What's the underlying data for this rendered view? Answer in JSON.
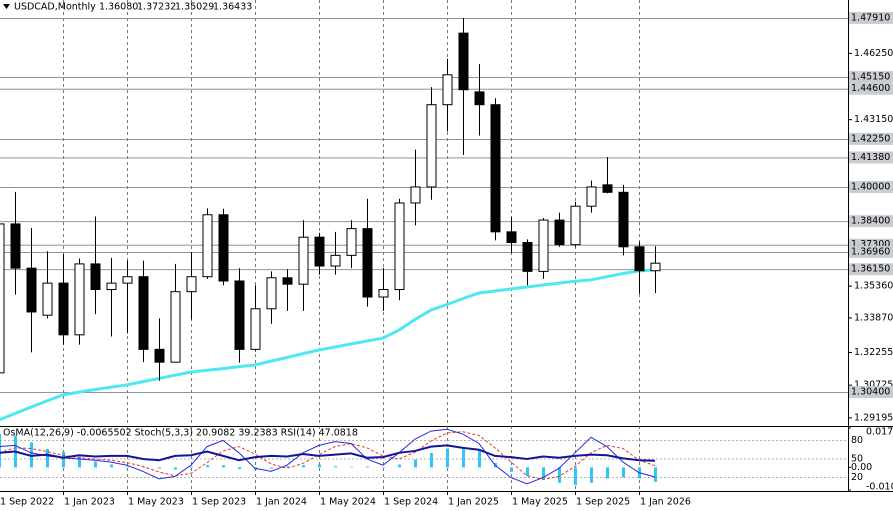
{
  "chart_data": {
    "type": "candlestick",
    "header": {
      "symbol": "USDCAD,Monthly",
      "ohlc": [
        "1.36080",
        "1.37232",
        "1.35029",
        "1.36433"
      ]
    },
    "categories": [
      "1 Sep 2022",
      null,
      null,
      null,
      "1 Jan 2023",
      null,
      null,
      null,
      "1 May 2023",
      null,
      null,
      null,
      "1 Sep 2023",
      null,
      null,
      null,
      "1 Jan 2024",
      null,
      null,
      null,
      "1 May 2024",
      null,
      null,
      null,
      "1 Sep 2024",
      null,
      null,
      null,
      "1 Jan 2025",
      null,
      null,
      null,
      "1 May 2025",
      null,
      null,
      null,
      "1 Sep 2025",
      null,
      null,
      null,
      "1 Jan 2026",
      null
    ],
    "open": [
      1.313,
      1.3827,
      1.362,
      1.34,
      1.355,
      1.3308,
      1.364,
      1.352,
      1.355,
      1.358,
      1.324,
      1.318,
      1.351,
      1.358,
      1.387,
      1.356,
      1.324,
      1.343,
      1.3575,
      1.3545,
      1.3765,
      1.363,
      1.368,
      1.3805,
      1.3485,
      1.352,
      1.3925,
      1.4,
      1.4385,
      1.472,
      1.4445,
      1.4385,
      1.379,
      1.374,
      1.3605,
      1.3845,
      1.373,
      1.391,
      1.401,
      1.3975,
      1.372,
      1.3608
    ],
    "high": [
      1.3838,
      1.3977,
      1.3808,
      1.37,
      1.3685,
      1.3665,
      1.3862,
      1.3668,
      1.3655,
      1.3655,
      1.3385,
      1.364,
      1.3695,
      1.39,
      1.3898,
      1.362,
      1.354,
      1.3605,
      1.3615,
      1.3845,
      1.3785,
      1.379,
      1.3845,
      1.3945,
      1.362,
      1.3945,
      1.4175,
      1.4467,
      1.46,
      1.4791,
      1.4575,
      1.4415,
      1.386,
      1.3755,
      1.3855,
      1.388,
      1.393,
      1.403,
      1.414,
      1.401,
      1.3745,
      1.37232
    ],
    "low": [
      1.308,
      1.3496,
      1.3226,
      1.3385,
      1.3262,
      1.3262,
      1.3405,
      1.33,
      1.3315,
      1.318,
      1.3093,
      1.318,
      1.338,
      1.357,
      1.354,
      1.3178,
      1.323,
      1.336,
      1.342,
      1.342,
      1.359,
      1.359,
      1.362,
      1.344,
      1.342,
      1.347,
      1.382,
      1.394,
      1.426,
      1.415,
      1.424,
      1.375,
      1.369,
      1.354,
      1.357,
      1.372,
      1.372,
      1.388,
      1.397,
      1.368,
      1.35,
      1.35029
    ],
    "close": [
      1.3827,
      1.362,
      1.3415,
      1.355,
      1.3308,
      1.364,
      1.352,
      1.355,
      1.358,
      1.324,
      1.318,
      1.351,
      1.358,
      1.387,
      1.356,
      1.324,
      1.343,
      1.3575,
      1.3545,
      1.3765,
      1.363,
      1.368,
      1.3805,
      1.3485,
      1.352,
      1.3925,
      1.4,
      1.4385,
      1.4525,
      1.4455,
      1.4385,
      1.379,
      1.374,
      1.3605,
      1.3845,
      1.373,
      1.391,
      1.4,
      1.3975,
      1.372,
      1.3608,
      1.36433
    ],
    "up_color": "#ffffff",
    "down_color": "#000000",
    "ylim": [
      1.2886,
      1.4875
    ],
    "yticks": [
      {
        "value": 1.4625,
        "label": "1.46250"
      },
      {
        "value": 1.4315,
        "label": "1.43150"
      },
      {
        "value": 1.3536,
        "label": "1.35360"
      },
      {
        "value": 1.3387,
        "label": "1.33870"
      },
      {
        "value": 1.32255,
        "label": "1.32255"
      },
      {
        "value": 1.30725,
        "label": "1.30725"
      },
      {
        "value": 1.29195,
        "label": "1.29195"
      }
    ],
    "levels": [
      {
        "value": 1.4791,
        "label": "1.47910"
      },
      {
        "value": 1.4515,
        "label": "1.45150"
      },
      {
        "value": 1.446,
        "label": "1.44600"
      },
      {
        "value": 1.4225,
        "label": "1.42250"
      },
      {
        "value": 1.4138,
        "label": "1.41380"
      },
      {
        "value": 1.4,
        "label": "1.40000"
      },
      {
        "value": 1.384,
        "label": "1.38400"
      },
      {
        "value": 1.373,
        "label": "1.37300"
      },
      {
        "value": 1.3696,
        "label": "1.36960"
      },
      {
        "value": 1.3615,
        "label": "1.36150"
      },
      {
        "value": 1.304,
        "label": "1.30400"
      }
    ],
    "ma": {
      "color": "#4ee8f2",
      "values": [
        1.291,
        1.294,
        1.297,
        1.2999,
        1.3027,
        1.304,
        1.3052,
        1.3063,
        1.3074,
        1.3089,
        1.3104,
        1.3119,
        1.3134,
        1.3142,
        1.315,
        1.3159,
        1.3167,
        1.3185,
        1.3202,
        1.322,
        1.3237,
        1.3251,
        1.3265,
        1.3279,
        1.3293,
        1.333,
        1.338,
        1.3424,
        1.345,
        1.3478,
        1.3504,
        1.3513,
        1.3523,
        1.3532,
        1.3541,
        1.355,
        1.3559,
        1.3565,
        1.358,
        1.3595,
        1.3607,
        1.3612
      ]
    },
    "indicator_title": "OsMA(12,26,9) -0.0065502  Stoch(5,3,3) 20.9082 39.2383  RSI(14) 47.0818",
    "osma": {
      "color": "#33c4f2",
      "ylim": [
        -0.01021,
        0.0177324
      ],
      "yticks": [
        0.0177324,
        {
          "value": 0,
          "label": "0.00"
        },
        -0.01021
      ],
      "values": [
        0.015,
        0.0144,
        0.0113,
        0.0083,
        0.007,
        0.0048,
        0.0026,
        0.0013,
        0.0004,
        0.0,
        -0.0005,
        -0.001,
        0.0004,
        0.001,
        0.001,
        -0.0008,
        -0.0012,
        -0.0005,
        0.0005,
        0.001,
        0.0013,
        0.0005,
        0.0003,
        0.0004,
        0.0002,
        0.0013,
        0.0035,
        0.0065,
        0.0085,
        0.009,
        0.008,
        0.002,
        -0.002,
        -0.004,
        -0.0055,
        -0.007,
        -0.008,
        -0.007,
        -0.005,
        -0.0045,
        -0.005,
        -0.0065502
      ]
    },
    "stoch": {
      "ylim": [
        0,
        100
      ],
      "yticks": [
        80,
        50,
        20
      ],
      "main": {
        "color": "#2b2bdc",
        "values": [
          70,
          72,
          60,
          55,
          52,
          50,
          48,
          45,
          40,
          30,
          18,
          22,
          40,
          70,
          80,
          60,
          35,
          30,
          40,
          60,
          72,
          78,
          75,
          50,
          40,
          60,
          82,
          95,
          98,
          90,
          75,
          40,
          20,
          10,
          20,
          35,
          60,
          85,
          70,
          45,
          28,
          20.9082
        ]
      },
      "signal": {
        "color": "#e03a3a",
        "values": [
          60,
          68,
          67,
          62,
          56,
          52,
          50,
          48,
          44,
          38,
          29,
          23,
          27,
          44,
          63,
          70,
          58,
          42,
          35,
          43,
          57,
          70,
          75,
          68,
          55,
          50,
          61,
          79,
          92,
          94,
          88,
          68,
          45,
          23,
          17,
          22,
          38,
          60,
          72,
          67,
          48,
          39.2383
        ]
      }
    },
    "rsi": {
      "color": "#14149a",
      "values": [
        60,
        62,
        55,
        57,
        52,
        56,
        54,
        55,
        55,
        50,
        48,
        55,
        56,
        62,
        55,
        48,
        53,
        55,
        54,
        58,
        55,
        57,
        59,
        52,
        53,
        60,
        63,
        70,
        72,
        68,
        65,
        55,
        53,
        50,
        54,
        52,
        55,
        57,
        56,
        51,
        48,
        47.0818
      ]
    }
  }
}
